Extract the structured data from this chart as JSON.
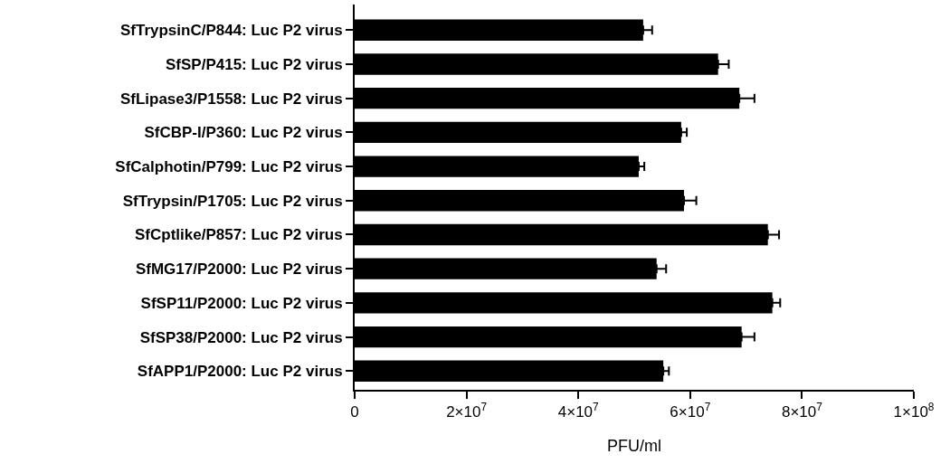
{
  "chart_data": {
    "type": "bar",
    "orientation": "horizontal",
    "xlabel": "PFU/ml",
    "categories": [
      "SfTrypsinC/P844: Luc P2 virus",
      "SfSP/P415: Luc P2 virus",
      "SfLipase3/P1558: Luc P2 virus",
      "SfCBP-I/P360: Luc P2 virus",
      "SfCalphotin/P799: Luc P2 virus",
      "SfTrypsin/P1705: Luc P2 virus",
      "SfCptlike/P857: Luc P2 virus",
      "SfMG17/P2000: Luc P2 virus",
      "SfSP11/P2000: Luc P2 virus",
      "SfSP38/P2000: Luc P2 virus",
      "SfAPP1/P2000: Luc P2 virus"
    ],
    "values": [
      51600000,
      65000000,
      68800000,
      58400000,
      50800000,
      58900000,
      73900000,
      54000000,
      74700000,
      69200000,
      55200000
    ],
    "errors": [
      1600000,
      1900000,
      2700000,
      1000000,
      1000000,
      2200000,
      2000000,
      1700000,
      1400000,
      2300000,
      1000000
    ],
    "color": "#000000",
    "xlim": [
      0,
      100000000
    ],
    "xticks": [
      0,
      {
        "value": 20000000,
        "label": "2×10$^{7}$"
      },
      {
        "value": 40000000,
        "label": "4×10$^{7}$"
      },
      {
        "value": 60000000,
        "label": "6×10$^{7}$"
      },
      {
        "value": 80000000,
        "label": "8×10$^{7}$"
      },
      {
        "value": 100000000,
        "label": "1×10$^{8}$"
      }
    ],
    "tick_labels": "xy"
  }
}
